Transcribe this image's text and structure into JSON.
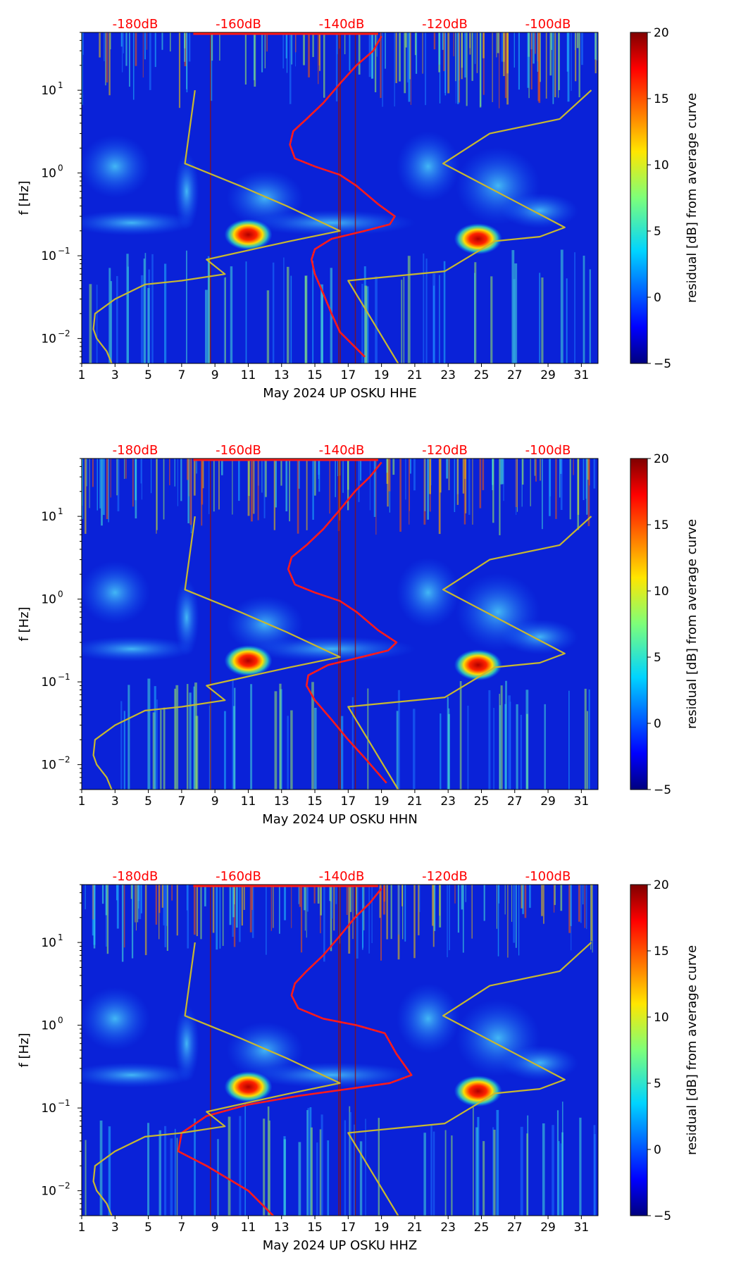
{
  "chart_data": [
    {
      "type": "heatmap",
      "component": "HHE",
      "xlabel": "May 2024 UP OSKU  HHE",
      "ylabel": "f [Hz]",
      "xticks": [
        "1",
        "3",
        "5",
        "7",
        "9",
        "11",
        "13",
        "15",
        "17",
        "19",
        "21",
        "23",
        "25",
        "27",
        "29",
        "31"
      ],
      "xlim": [
        1,
        32
      ],
      "ylim": [
        0.005,
        50
      ],
      "yscale": "log",
      "yticks": [
        {
          "base": "10",
          "exp": "−2",
          "value": 0.01
        },
        {
          "base": "10",
          "exp": "−1",
          "value": 0.1
        },
        {
          "base": "10",
          "exp": "0",
          "value": 1
        },
        {
          "base": "10",
          "exp": "1",
          "value": 10
        }
      ],
      "top_axis_labels": [
        "-180dB",
        "-160dB",
        "-140dB",
        "-120dB",
        "-100dB"
      ],
      "top_axis_label_color": "#ff0000",
      "colorbar": {
        "label": "residual [dB] from average curve",
        "ticks": [
          "−5",
          "0",
          "5",
          "10",
          "15",
          "20"
        ],
        "range": [
          -5,
          20
        ]
      },
      "hotspots": [
        {
          "day": 11,
          "freq": 0.18
        },
        {
          "day": 24.8,
          "freq": 0.16
        }
      ],
      "series": [
        {
          "name": "average PSD",
          "color": "#ff1a1a",
          "x": [
            19,
            18.5,
            17.5,
            16.5,
            15.5,
            14.5,
            13.7,
            13.5,
            13.8,
            15,
            16.5,
            17.5,
            18.8,
            19.8,
            19.5,
            18,
            16,
            15,
            14.8,
            15,
            15.5,
            16,
            16.5,
            18
          ],
          "f": [
            45,
            30,
            20,
            12,
            7,
            4.5,
            3.2,
            2.2,
            1.5,
            1.2,
            0.95,
            0.7,
            0.42,
            0.3,
            0.24,
            0.2,
            0.16,
            0.12,
            0.09,
            0.06,
            0.035,
            0.02,
            0.012,
            0.006
          ]
        },
        {
          "name": "low noise model",
          "color": "#c8b830",
          "x": [
            7.8,
            7.2,
            10.5,
            13.3,
            16.5,
            13.5,
            8.5,
            9.6,
            7,
            4.8,
            3,
            1.8,
            1.7,
            1.9,
            2.5,
            2.8
          ],
          "f": [
            10,
            1.3,
            0.7,
            0.4,
            0.2,
            0.15,
            0.09,
            0.06,
            0.05,
            0.045,
            0.03,
            0.02,
            0.013,
            0.01,
            0.007,
            0.005
          ]
        },
        {
          "name": "high noise model",
          "color": "#c8b830",
          "x": [
            31.6,
            29.7,
            25.5,
            22.7,
            30,
            28.5,
            25.8,
            22.8,
            17,
            20
          ],
          "f": [
            10,
            4.5,
            3,
            1.3,
            0.22,
            0.17,
            0.15,
            0.065,
            0.05,
            0.005
          ]
        }
      ]
    },
    {
      "type": "heatmap",
      "component": "HHN",
      "xlabel": "May 2024 UP OSKU  HHN",
      "ylabel": "f [Hz]",
      "xticks": [
        "1",
        "3",
        "5",
        "7",
        "9",
        "11",
        "13",
        "15",
        "17",
        "19",
        "21",
        "23",
        "25",
        "27",
        "29",
        "31"
      ],
      "xlim": [
        1,
        32
      ],
      "ylim": [
        0.005,
        50
      ],
      "yscale": "log",
      "yticks": [
        {
          "base": "10",
          "exp": "−2",
          "value": 0.01
        },
        {
          "base": "10",
          "exp": "−1",
          "value": 0.1
        },
        {
          "base": "10",
          "exp": "0",
          "value": 1
        },
        {
          "base": "10",
          "exp": "1",
          "value": 10
        }
      ],
      "top_axis_labels": [
        "-180dB",
        "-160dB",
        "-140dB",
        "-120dB",
        "-100dB"
      ],
      "top_axis_label_color": "#ff0000",
      "colorbar": {
        "label": "residual [dB] from average curve",
        "ticks": [
          "−5",
          "0",
          "5",
          "10",
          "15",
          "20"
        ],
        "range": [
          -5,
          20
        ]
      },
      "hotspots": [
        {
          "day": 11,
          "freq": 0.18
        },
        {
          "day": 24.8,
          "freq": 0.16
        }
      ],
      "series": [
        {
          "name": "average PSD",
          "color": "#ff1a1a",
          "x": [
            19,
            18.3,
            17.4,
            16.5,
            15.5,
            14.5,
            13.6,
            13.4,
            13.8,
            15,
            16.5,
            17.5,
            18.8,
            19.9,
            19.4,
            17.8,
            15.8,
            14.6,
            14.5,
            15,
            16,
            17,
            18,
            19.3
          ],
          "f": [
            45,
            30,
            20,
            12,
            7,
            4.5,
            3.2,
            2.3,
            1.5,
            1.2,
            0.95,
            0.7,
            0.42,
            0.3,
            0.24,
            0.2,
            0.16,
            0.12,
            0.09,
            0.06,
            0.035,
            0.02,
            0.012,
            0.006
          ]
        },
        {
          "name": "low noise model",
          "color": "#c8b830",
          "x": [
            7.8,
            7.2,
            10.5,
            13.3,
            16.5,
            13.5,
            8.5,
            9.6,
            7,
            4.8,
            3,
            1.8,
            1.7,
            1.9,
            2.5,
            2.8
          ],
          "f": [
            10,
            1.3,
            0.7,
            0.4,
            0.2,
            0.15,
            0.09,
            0.06,
            0.05,
            0.045,
            0.03,
            0.02,
            0.013,
            0.01,
            0.007,
            0.005
          ]
        },
        {
          "name": "high noise model",
          "color": "#c8b830",
          "x": [
            31.6,
            29.7,
            25.5,
            22.7,
            30,
            28.5,
            25.8,
            22.8,
            17,
            20
          ],
          "f": [
            10,
            4.5,
            3,
            1.3,
            0.22,
            0.17,
            0.15,
            0.065,
            0.05,
            0.005
          ]
        }
      ]
    },
    {
      "type": "heatmap",
      "component": "HHZ",
      "xlabel": "May 2024 UP OSKU  HHZ",
      "ylabel": "f [Hz]",
      "xticks": [
        "1",
        "3",
        "5",
        "7",
        "9",
        "11",
        "13",
        "15",
        "17",
        "19",
        "21",
        "23",
        "25",
        "27",
        "29",
        "31"
      ],
      "xlim": [
        1,
        32
      ],
      "ylim": [
        0.005,
        50
      ],
      "yscale": "log",
      "yticks": [
        {
          "base": "10",
          "exp": "−2",
          "value": 0.01
        },
        {
          "base": "10",
          "exp": "−1",
          "value": 0.1
        },
        {
          "base": "10",
          "exp": "0",
          "value": 1
        },
        {
          "base": "10",
          "exp": "1",
          "value": 10
        }
      ],
      "top_axis_labels": [
        "-180dB",
        "-160dB",
        "-140dB",
        "-120dB",
        "-100dB"
      ],
      "top_axis_label_color": "#ff0000",
      "colorbar": {
        "label": "residual [dB] from average curve",
        "ticks": [
          "−5",
          "0",
          "5",
          "10",
          "15",
          "20"
        ],
        "range": [
          -5,
          20
        ]
      },
      "hotspots": [
        {
          "day": 11,
          "freq": 0.18
        },
        {
          "day": 24.8,
          "freq": 0.16
        }
      ],
      "series": [
        {
          "name": "average PSD",
          "color": "#ff1a1a",
          "x": [
            19,
            18.3,
            17.4,
            16.5,
            15.5,
            14.5,
            13.8,
            13.6,
            14,
            15.5,
            17.5,
            19.2,
            19.9,
            20.8,
            19.5,
            17,
            14,
            11,
            8.5,
            7,
            6.8,
            8.5,
            11,
            12.5
          ],
          "f": [
            45,
            30,
            20,
            12,
            7,
            4.5,
            3.2,
            2.3,
            1.6,
            1.2,
            1,
            0.8,
            0.45,
            0.25,
            0.2,
            0.17,
            0.14,
            0.11,
            0.08,
            0.05,
            0.03,
            0.02,
            0.01,
            0.005
          ]
        },
        {
          "name": "low noise model",
          "color": "#c8b830",
          "x": [
            7.8,
            7.2,
            10.5,
            13.3,
            16.5,
            13.5,
            8.5,
            9.6,
            7,
            4.8,
            3,
            1.8,
            1.7,
            1.9,
            2.5,
            2.8
          ],
          "f": [
            10,
            1.3,
            0.7,
            0.4,
            0.2,
            0.15,
            0.09,
            0.06,
            0.05,
            0.045,
            0.03,
            0.02,
            0.013,
            0.01,
            0.007,
            0.005
          ]
        },
        {
          "name": "high noise model",
          "color": "#c8b830",
          "x": [
            31.6,
            29.7,
            25.5,
            22.7,
            30,
            28.5,
            25.8,
            22.8,
            17,
            20
          ],
          "f": [
            10,
            4.5,
            3,
            1.3,
            0.22,
            0.17,
            0.15,
            0.065,
            0.05,
            0.005
          ]
        }
      ]
    }
  ]
}
